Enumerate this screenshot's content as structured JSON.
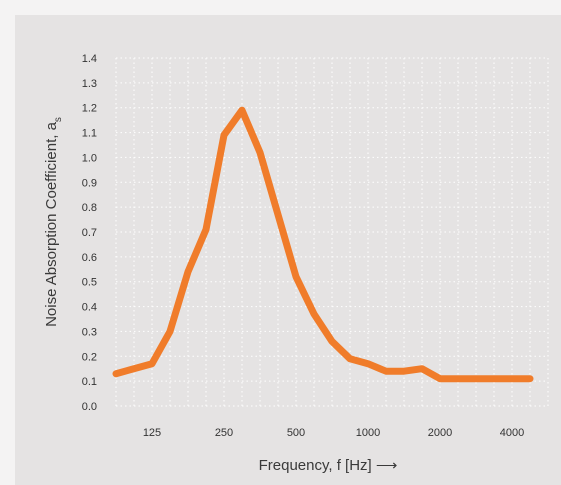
{
  "chart_data": {
    "type": "line",
    "xlabel": "Frequency, f [Hz] ⟶",
    "ylabel": "Noise Absorption Coefficient, a",
    "ylabel_subscript": "s",
    "ylim": [
      0,
      1.4
    ],
    "y_ticks": [
      "0.0",
      "0.1",
      "0.2",
      "0.3",
      "0.4",
      "0.5",
      "0.6",
      "0.7",
      "0.8",
      "0.9",
      "1.0",
      "1.1",
      "1.2",
      "1.3",
      "1.4"
    ],
    "x_ticks": [
      "125",
      "250",
      "500",
      "1000",
      "2000",
      "4000"
    ],
    "x_tick_positions": [
      1,
      3,
      5,
      7,
      9,
      11
    ],
    "x_range": [
      0,
      12
    ],
    "grid": true,
    "color": "#f07c2a",
    "series": [
      {
        "x": [
          0,
          1,
          1.5,
          2,
          2.5,
          3,
          3.5,
          4,
          4.5,
          5,
          5.5,
          6,
          6.5,
          7,
          7.5,
          8,
          8.5,
          9,
          9.5,
          10,
          10.5,
          11,
          11.5
        ],
        "values": [
          0.13,
          0.17,
          0.3,
          0.54,
          0.71,
          1.09,
          1.19,
          1.02,
          0.77,
          0.52,
          0.37,
          0.26,
          0.19,
          0.17,
          0.14,
          0.14,
          0.15,
          0.11,
          0.11,
          0.11,
          0.11,
          0.11,
          0.11
        ]
      }
    ]
  }
}
